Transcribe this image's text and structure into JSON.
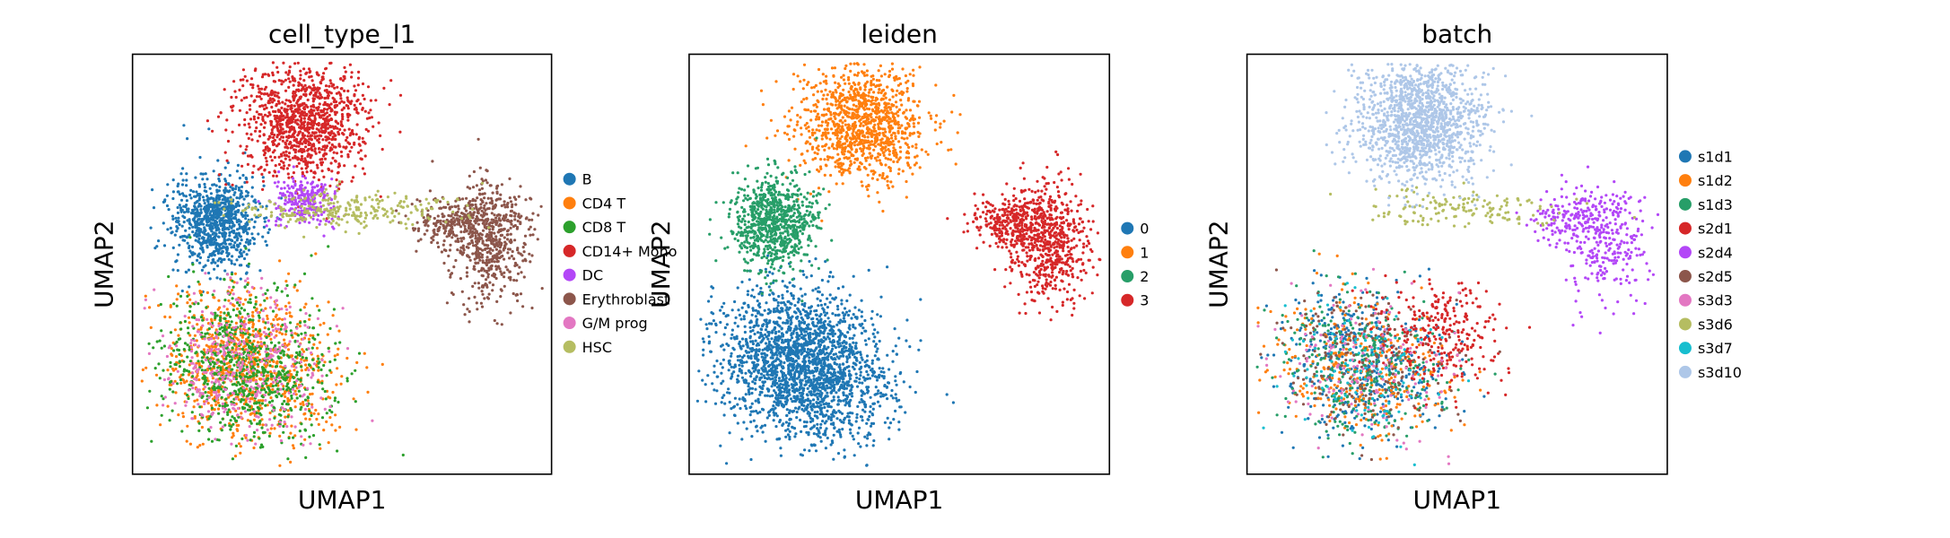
{
  "chart_data": [
    {
      "type": "scatter",
      "title": "cell_type_l1",
      "xlabel": "UMAP1",
      "ylabel": "UMAP2",
      "grid": false,
      "legend_position": "right",
      "series": [
        {
          "name": "B",
          "color": "#1f77b4"
        },
        {
          "name": "CD4 T",
          "color": "#ff7f0e"
        },
        {
          "name": "CD8 T",
          "color": "#2ca02c"
        },
        {
          "name": "CD14+ Mono",
          "color": "#d62728"
        },
        {
          "name": "DC",
          "color": "#b347f7"
        },
        {
          "name": "Erythroblast",
          "color": "#8c564b"
        },
        {
          "name": "G/M prog",
          "color": "#e377c2"
        },
        {
          "name": "HSC",
          "color": "#b5bd61"
        }
      ]
    },
    {
      "type": "scatter",
      "title": "leiden",
      "xlabel": "UMAP1",
      "ylabel": "UMAP2",
      "grid": false,
      "legend_position": "right",
      "series": [
        {
          "name": "0",
          "color": "#1f77b4"
        },
        {
          "name": "1",
          "color": "#ff7f0e"
        },
        {
          "name": "2",
          "color": "#279e68"
        },
        {
          "name": "3",
          "color": "#d62728"
        }
      ]
    },
    {
      "type": "scatter",
      "title": "batch",
      "xlabel": "UMAP1",
      "ylabel": "UMAP2",
      "grid": false,
      "legend_position": "right",
      "series": [
        {
          "name": "s1d1",
          "color": "#1f77b4"
        },
        {
          "name": "s1d2",
          "color": "#ff7f0e"
        },
        {
          "name": "s1d3",
          "color": "#279e68"
        },
        {
          "name": "s2d1",
          "color": "#d62728"
        },
        {
          "name": "s2d4",
          "color": "#b347f7"
        },
        {
          "name": "s2d5",
          "color": "#8c564b"
        },
        {
          "name": "s3d3",
          "color": "#e377c2"
        },
        {
          "name": "s3d6",
          "color": "#b5bd61"
        },
        {
          "name": "s3d7",
          "color": "#17becf"
        },
        {
          "name": "s3d10",
          "color": "#aec7e8"
        }
      ]
    }
  ]
}
